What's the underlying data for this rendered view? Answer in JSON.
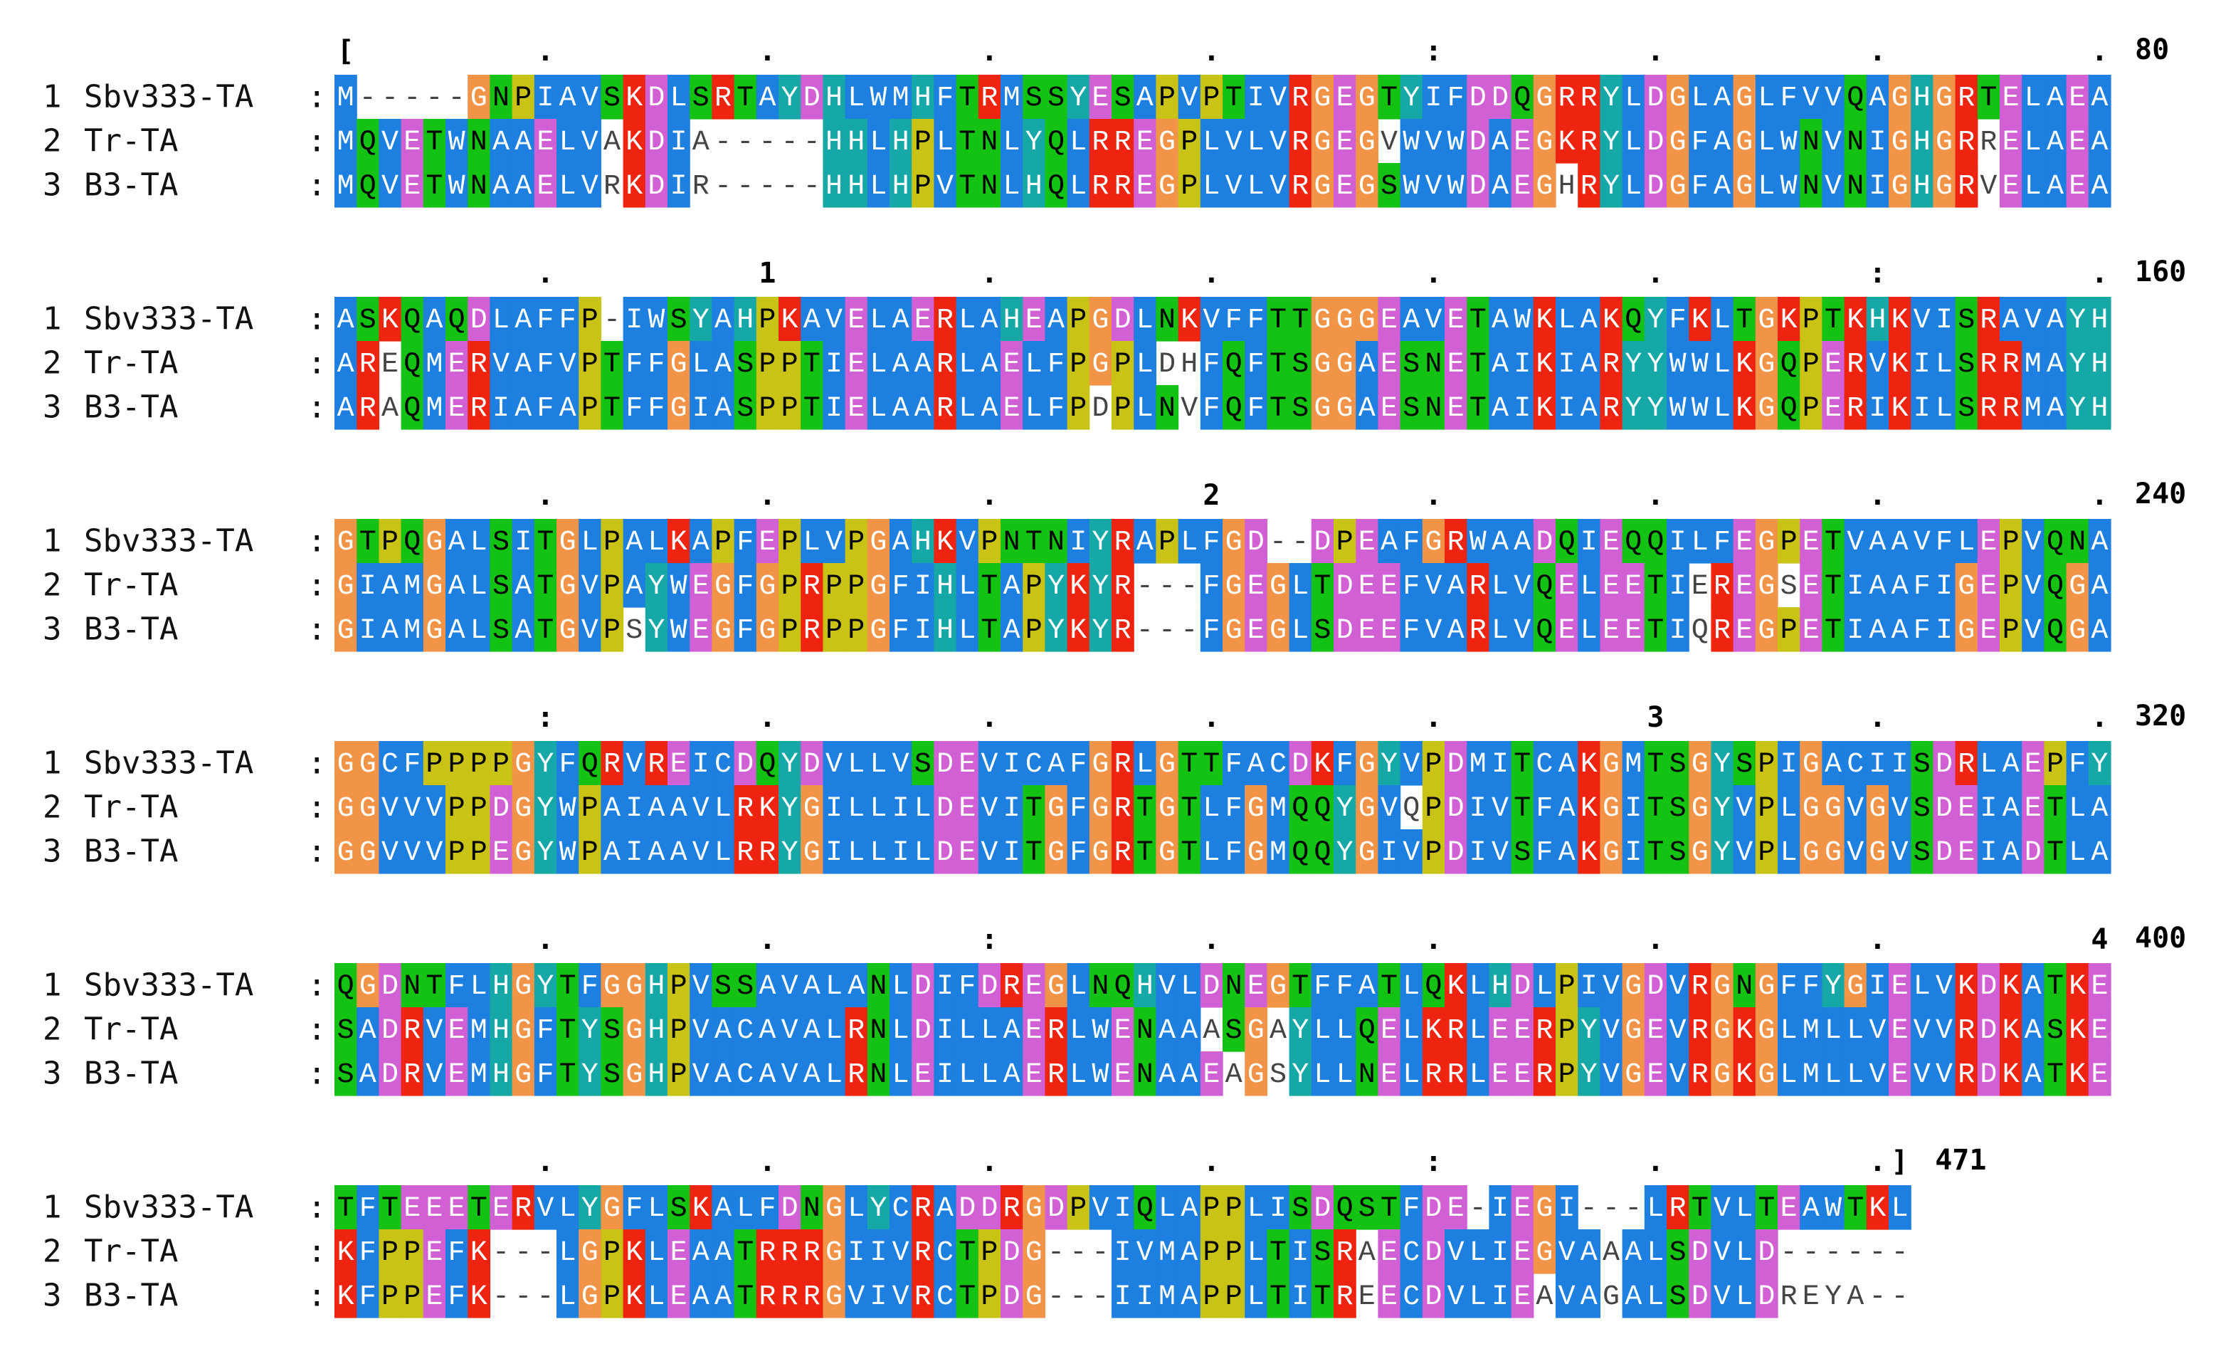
{
  "separator": ":",
  "sequences": [
    {
      "num": "1",
      "name": "Sbv333-TA"
    },
    {
      "num": "2",
      "name": "Tr-TA"
    },
    {
      "num": "3",
      "name": "B3-TA"
    }
  ],
  "blocks": [
    {
      "ruler": "[        .         .         .         .         :         .         .         .",
      "end": "80",
      "rows": [
        "M-----GNPIAVSKDLSRTAYDHLWMHFTRMSSYESAPVPTIVRGEGTYIFDDQGRRYLDGLAGLFVVQAGHGRTELAEA",
        "MQVETWNAAELVAKDIA-----HHLHPLTNLYQLRREGPLVLVRGEGVWVWDAEGKRYLDGFAGLWNVNIGHGRRELAEA",
        "MQVETWNAAELVRKDIR-----HHLHPVTNLHQLRREGPLVLVRGEGSWVWDAEGHRYLDGFAGLWNVNIGHGRVELAEA"
      ]
    },
    {
      "ruler": "         .         1         .         .         .         .         :         .",
      "end": "160",
      "rows": [
        "ASKQAQDLAFFP-IWSYAHPKAVELAERLAHEAPGDLNKVFFTTGGGEAVETAWKLAKQYFKLTGKPTKHKVISRAVAYH",
        "AREQMERVAFVPTFFGLASPPTIELAARLAELFPGPLDHFQFTSGGAESNETAIKIARYYWWLKGQPERVKILSRRMAYH",
        "ARAQMERIAFAPTFFGIASPPTIELAARLAELFPDPLNVFQFTSGGAESNETAIKIARYYWWLKGQPERIKILSRRMAYH"
      ]
    },
    {
      "ruler": "         .         .         .         2         .         .         .         .",
      "end": "240",
      "rows": [
        "GTPQGALSITGLPALKAPFEPLVPGAHKVPNTNIYRAPLFGD--DPEAFGRWAADQIEQQILFEGPETVAAVFLEPVQNA",
        "GIAMGALSATGVPAYWEGFGPRPPGFIHLTAPYKYR---FGEGLTDEEFVARLVQELEETIEREGSETIAAFIGEPVQGA",
        "GIAMGALSATGVPSYWEGFGPRPPGFIHLTAPYKYR---FGEGLSDEEFVARLVQELEETIQREGPETIAAFIGEPVQGA"
      ]
    },
    {
      "ruler": "         :         .         .         .         .         3         .         .",
      "end": "320",
      "rows": [
        "GGCFPPPPGYFQRVREICDQYDVLLVSDEVICAFGRLGTTFACDKFGYVPDMITCAKGMTSGYSPIGACIISDRLAEPFY",
        "GGVVVPPDGYWPAIAAVLRKYGILLILDEVITGFGRTGTLFGMQQYGVQPDIVTFAKGITSGYVPLGGVGVSDEIAETLA",
        "GGVVVPPEGYWPAIAAVLRRYGILLILDEVITGFGRTGTLFGMQQYGIVPDIVSFAKGITSGYVPLGGVGVSDEIADTLA"
      ]
    },
    {
      "ruler": "         .         .         :         .         .         .         .         4",
      "end": "400",
      "rows": [
        "QGDNTFLHGYTFGGHPVSSAVALANLDIFDREGLNQHVLDNEGTFFATLQKLHDLPIVGDVRGNGFFYGIELVKDKATKE",
        "SADRVEMHGFTYSGHPVACAVALRNLDILLAERLWENAAASGAYLLQELKRLEERPYVGEVRGKGLMLLVEVVRDKASKE",
        "SADRVEMHGFTYSGHPVACAVALRNLEILLAERLWENAAEAGSYLLNELRRLEERPYVGEVRGKGLMLLVEVVRDKATKE"
      ]
    },
    {
      "ruler": "         .         .         .         .         :         .         .]",
      "end": "471",
      "rows": [
        "TFTEEETERVLYGFLSKALFDNGLYCRADDRGDPVIQLAPPLISDQSTFDE-IEGI---LRTVLTEAWTKL",
        "KFPPEFK---LGPKLEAATRRRGIIVRCTPDG---IVMAPPLTISRAECDVLIEGVAAALSDVLD------",
        "KFPPEFK---LGPKLEAATRRRGVIVRCTPDG---IIMAPPLTITREECDVLIEAVAGALSDVLDREYA--"
      ]
    }
  ]
}
